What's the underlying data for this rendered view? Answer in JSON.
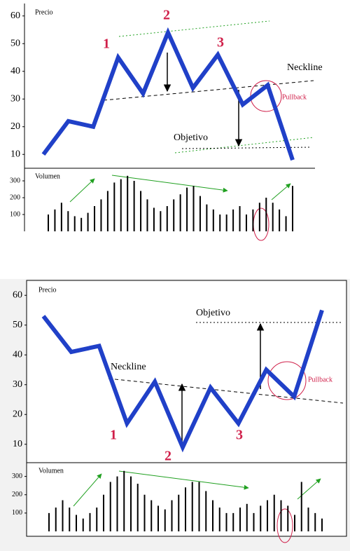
{
  "chart_data": [
    {
      "type": "line",
      "ylabel": "Precio",
      "categories": [
        null,
        null,
        null,
        null,
        null,
        null,
        null,
        null,
        null,
        null,
        null
      ],
      "values": [
        10,
        22,
        20,
        45,
        32,
        54,
        34,
        46,
        28,
        35,
        8
      ],
      "color": "#2040c8",
      "ylim": [
        5,
        65
      ],
      "yticks": [
        10,
        20,
        30,
        40,
        50,
        60
      ],
      "annotations": [
        "1",
        "2",
        "3",
        "Neckline",
        "Pullback",
        "Objetivo"
      ]
    },
    {
      "type": "bar",
      "ylabel": "Volumen",
      "categories": [
        null,
        null,
        null,
        null,
        null,
        null,
        null,
        null,
        null,
        null,
        null,
        null,
        null,
        null,
        null,
        null,
        null,
        null,
        null,
        null,
        null,
        null,
        null,
        null,
        null,
        null,
        null,
        null,
        null,
        null,
        null,
        null,
        null,
        null,
        null,
        null,
        null,
        null
      ],
      "values": [
        100,
        130,
        170,
        120,
        90,
        80,
        110,
        150,
        190,
        240,
        290,
        310,
        330,
        300,
        240,
        190,
        140,
        120,
        150,
        190,
        220,
        260,
        270,
        210,
        160,
        130,
        100,
        100,
        130,
        150,
        100,
        130,
        170,
        200,
        170,
        130,
        90,
        270
      ],
      "color": "#000000",
      "ylim": [
        0,
        375
      ],
      "yticks": [
        100,
        200,
        300
      ]
    },
    {
      "type": "line",
      "ylabel": "Precio",
      "categories": [
        null,
        null,
        null,
        null,
        null,
        null,
        null,
        null,
        null,
        null,
        null
      ],
      "values": [
        53,
        41,
        43,
        17,
        31,
        9,
        29,
        17,
        35,
        26,
        55
      ],
      "color": "#2040c8",
      "ylim": [
        5,
        65
      ],
      "yticks": [
        10,
        20,
        30,
        40,
        50,
        60
      ],
      "annotations": [
        "1",
        "2",
        "3",
        "Neckline",
        "Pullback",
        "Objetivo"
      ]
    },
    {
      "type": "bar",
      "ylabel": "Volumen",
      "categories": [
        null,
        null,
        null,
        null,
        null,
        null,
        null,
        null,
        null,
        null,
        null,
        null,
        null,
        null,
        null,
        null,
        null,
        null,
        null,
        null,
        null,
        null,
        null,
        null,
        null,
        null,
        null,
        null,
        null,
        null,
        null,
        null,
        null,
        null,
        null,
        null,
        null,
        null,
        null,
        null,
        null
      ],
      "values": [
        100,
        130,
        170,
        130,
        90,
        70,
        100,
        130,
        200,
        270,
        300,
        330,
        300,
        260,
        200,
        170,
        140,
        120,
        170,
        200,
        240,
        270,
        270,
        220,
        170,
        130,
        100,
        100,
        130,
        150,
        100,
        140,
        170,
        200,
        170,
        140,
        90,
        270,
        130,
        100,
        70
      ],
      "color": "#000000",
      "ylim": [
        0,
        375
      ],
      "yticks": [
        100,
        200,
        300
      ]
    }
  ]
}
